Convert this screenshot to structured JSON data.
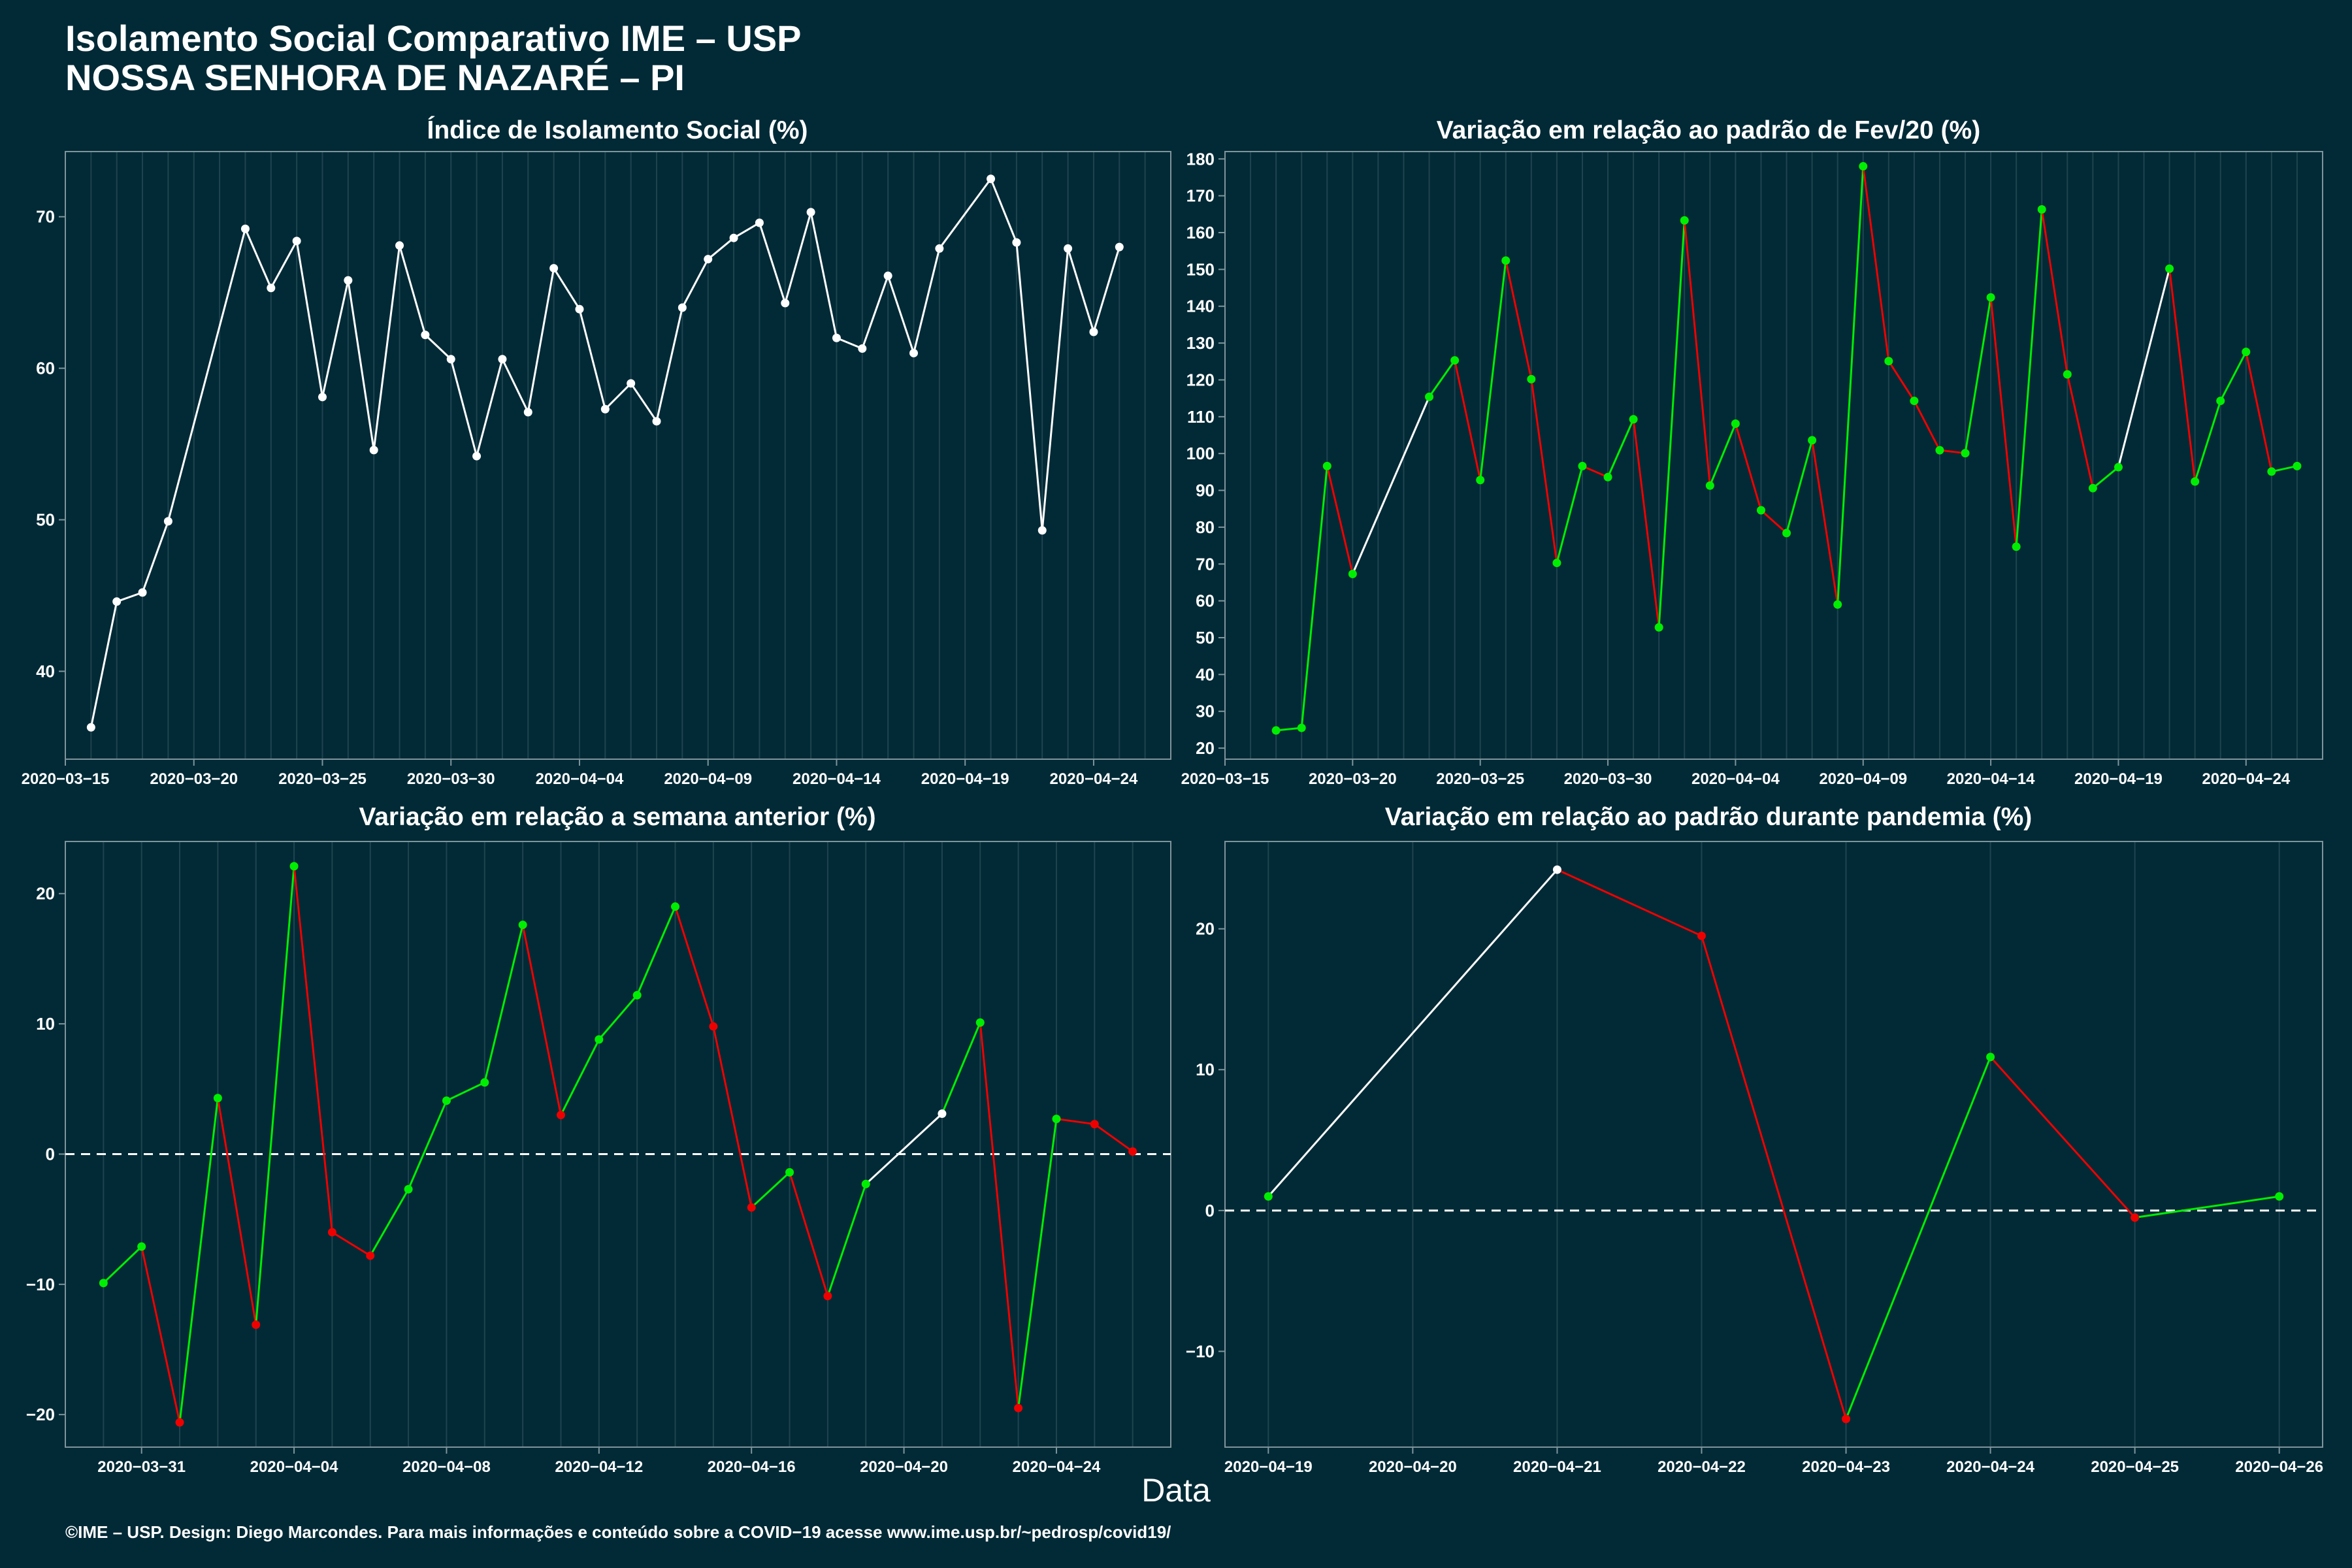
{
  "title_line1": "Isolamento Social Comparativo IME – USP",
  "title_line2": "NOSSA SENHORA DE NAZARÉ – PI",
  "x_axis_label": "Data",
  "footer": "©IME – USP. Design: Diego Marcondes. Para mais informações e conteúdo sobre a COVID−19 acesse www.ime.usp.br/~pedrosp/covid19/",
  "colors": {
    "background": "#012a36",
    "white": "#ffffff",
    "green": "#00ee00",
    "red": "#ee0000",
    "grid": "#1f4450",
    "axis": "#7f949b"
  },
  "chart_data": [
    {
      "type": "line",
      "title": "Índice de Isolamento Social (%)",
      "xlabel": "",
      "ylabel": "",
      "xlim": [
        "2020-03-15",
        "2020-04-27"
      ],
      "ylim": [
        34.2,
        74.3
      ],
      "yticks": [
        40,
        50,
        60,
        70
      ],
      "xticks": [
        "2020-03-15",
        "2020-03-20",
        "2020-03-25",
        "2020-03-30",
        "2020-04-04",
        "2020-04-09",
        "2020-04-14",
        "2020-04-19",
        "2020-04-24"
      ],
      "grid": true,
      "points": [
        [
          "2020-03-16",
          36.3
        ],
        [
          "2020-03-17",
          44.6
        ],
        [
          "2020-03-18",
          45.2
        ],
        [
          "2020-03-19",
          49.9
        ],
        [
          "2020-03-22",
          69.2
        ],
        [
          "2020-03-23",
          65.3
        ],
        [
          "2020-03-24",
          68.4
        ],
        [
          "2020-03-25",
          58.1
        ],
        [
          "2020-03-26",
          65.8
        ],
        [
          "2020-03-27",
          54.6
        ],
        [
          "2020-03-28",
          68.1
        ],
        [
          "2020-03-29",
          62.2
        ],
        [
          "2020-03-30",
          60.6
        ],
        [
          "2020-03-31",
          54.2
        ],
        [
          "2020-04-01",
          60.6
        ],
        [
          "2020-04-02",
          57.1
        ],
        [
          "2020-04-03",
          66.6
        ],
        [
          "2020-04-04",
          63.9
        ],
        [
          "2020-04-05",
          57.3
        ],
        [
          "2020-04-06",
          59.0
        ],
        [
          "2020-04-07",
          56.5
        ],
        [
          "2020-04-08",
          64.0
        ],
        [
          "2020-04-09",
          67.2
        ],
        [
          "2020-04-10",
          68.6
        ],
        [
          "2020-04-11",
          69.6
        ],
        [
          "2020-04-12",
          64.3
        ],
        [
          "2020-04-13",
          70.3
        ],
        [
          "2020-04-14",
          62.0
        ],
        [
          "2020-04-15",
          61.3
        ],
        [
          "2020-04-16",
          66.1
        ],
        [
          "2020-04-17",
          61.0
        ],
        [
          "2020-04-18",
          67.9
        ],
        [
          "2020-04-20",
          72.5
        ],
        [
          "2020-04-21",
          68.3
        ],
        [
          "2020-04-22",
          49.3
        ],
        [
          "2020-04-23",
          67.9
        ],
        [
          "2020-04-24",
          62.4
        ],
        [
          "2020-04-25",
          68.0
        ]
      ]
    },
    {
      "type": "line",
      "title": "Variação em relação ao padrão de Fev/20 (%)",
      "xlabel": "",
      "ylabel": "",
      "xlim": [
        "2020-03-15",
        "2020-04-27"
      ],
      "ylim": [
        17,
        182
      ],
      "yticks": [
        20,
        30,
        40,
        50,
        60,
        70,
        80,
        90,
        100,
        110,
        120,
        130,
        140,
        150,
        160,
        170,
        180
      ],
      "xticks": [
        "2020-03-15",
        "2020-03-20",
        "2020-03-25",
        "2020-03-30",
        "2020-04-04",
        "2020-04-09",
        "2020-04-14",
        "2020-04-19",
        "2020-04-24"
      ],
      "grid": true,
      "points": [
        [
          "2020-03-17",
          24.8
        ],
        [
          "2020-03-18",
          25.5
        ],
        [
          "2020-03-19",
          96.6
        ],
        [
          "2020-03-20",
          67.3
        ],
        [
          "2020-03-23",
          115.4
        ],
        [
          "2020-03-24",
          125.3
        ],
        [
          "2020-03-25",
          92.8
        ],
        [
          "2020-03-26",
          152.4
        ],
        [
          "2020-03-27",
          120.2
        ],
        [
          "2020-03-28",
          70.3
        ],
        [
          "2020-03-29",
          96.6
        ],
        [
          "2020-03-30",
          93.6
        ],
        [
          "2020-03-31",
          109.3
        ],
        [
          "2020-04-01",
          52.8
        ],
        [
          "2020-04-02",
          163.3
        ],
        [
          "2020-04-03",
          91.3
        ],
        [
          "2020-04-04",
          108.1
        ],
        [
          "2020-04-05",
          84.6
        ],
        [
          "2020-04-06",
          78.4
        ],
        [
          "2020-04-07",
          103.6
        ],
        [
          "2020-04-08",
          59.0
        ],
        [
          "2020-04-09",
          178.0
        ],
        [
          "2020-04-10",
          125.1
        ],
        [
          "2020-04-11",
          114.3
        ],
        [
          "2020-04-12",
          100.9
        ],
        [
          "2020-04-13",
          100.1
        ],
        [
          "2020-04-14",
          142.4
        ],
        [
          "2020-04-15",
          74.7
        ],
        [
          "2020-04-16",
          166.3
        ],
        [
          "2020-04-17",
          121.5
        ],
        [
          "2020-04-18",
          90.6
        ],
        [
          "2020-04-19",
          96.3
        ],
        [
          "2020-04-21",
          150.2
        ],
        [
          "2020-04-22",
          92.4
        ],
        [
          "2020-04-23",
          114.3
        ],
        [
          "2020-04-24",
          127.6
        ],
        [
          "2020-04-25",
          95.1
        ],
        [
          "2020-04-26",
          96.6
        ]
      ]
    },
    {
      "type": "line",
      "title": "Variação em relação a semana anterior (%)",
      "xlabel": "",
      "ylabel": "",
      "xlim": [
        "2020-03-29",
        "2020-04-27"
      ],
      "ylim": [
        -22.5,
        24.0
      ],
      "yticks": [
        -20,
        -10,
        0,
        10,
        20
      ],
      "xticks": [
        "2020-03-31",
        "2020-04-04",
        "2020-04-08",
        "2020-04-12",
        "2020-04-16",
        "2020-04-20",
        "2020-04-24"
      ],
      "grid": true,
      "reference_line": 0,
      "points": [
        [
          "2020-03-30",
          -9.9
        ],
        [
          "2020-03-31",
          -7.1
        ],
        [
          "2020-04-01",
          -20.6
        ],
        [
          "2020-04-02",
          4.3
        ],
        [
          "2020-04-03",
          -13.1
        ],
        [
          "2020-04-04",
          22.1
        ],
        [
          "2020-04-05",
          -6.0
        ],
        [
          "2020-04-06",
          -7.8
        ],
        [
          "2020-04-07",
          -2.7
        ],
        [
          "2020-04-08",
          4.1
        ],
        [
          "2020-04-09",
          5.5
        ],
        [
          "2020-04-10",
          17.6
        ],
        [
          "2020-04-11",
          3.0
        ],
        [
          "2020-04-12",
          8.8
        ],
        [
          "2020-04-13",
          12.2
        ],
        [
          "2020-04-14",
          19.0
        ],
        [
          "2020-04-15",
          9.8
        ],
        [
          "2020-04-16",
          -4.1
        ],
        [
          "2020-04-17",
          -1.4
        ],
        [
          "2020-04-18",
          -10.9
        ],
        [
          "2020-04-19",
          -2.3
        ],
        [
          "2020-04-21",
          3.1
        ],
        [
          "2020-04-22",
          10.1
        ],
        [
          "2020-04-23",
          -19.5
        ],
        [
          "2020-04-24",
          2.7
        ],
        [
          "2020-04-25",
          2.3
        ],
        [
          "2020-04-26",
          0.2
        ]
      ]
    },
    {
      "type": "line",
      "title": "Variação em relação ao padrão durante pandemia (%)",
      "xlabel": "",
      "ylabel": "",
      "xlim": [
        "2020-04-18.7",
        "2020-04-26.3"
      ],
      "ylim": [
        -16.8,
        26.2
      ],
      "yticks": [
        -10,
        0,
        10,
        20
      ],
      "xticks": [
        "2020-04-19",
        "2020-04-20",
        "2020-04-21",
        "2020-04-22",
        "2020-04-23",
        "2020-04-24",
        "2020-04-25",
        "2020-04-26"
      ],
      "grid": true,
      "reference_line": 0,
      "points": [
        [
          "2020-04-19",
          1.0
        ],
        [
          "2020-04-21",
          24.2
        ],
        [
          "2020-04-22",
          19.5
        ],
        [
          "2020-04-23",
          -14.8
        ],
        [
          "2020-04-24",
          10.9
        ],
        [
          "2020-04-25",
          -0.5
        ],
        [
          "2020-04-26",
          1.0
        ]
      ]
    }
  ]
}
